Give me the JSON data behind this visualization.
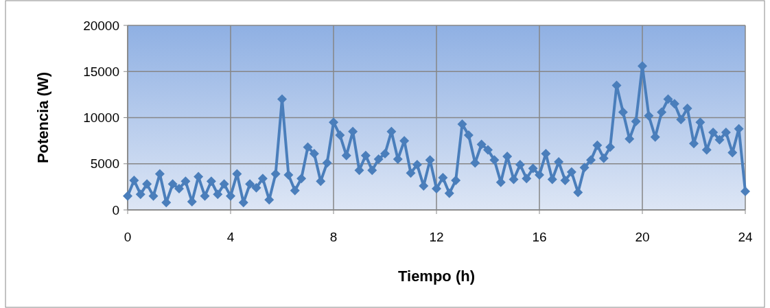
{
  "chart_data": {
    "type": "line",
    "xlabel": "Tiempo (h)",
    "ylabel": "Potencia (W)",
    "x": [
      0,
      0.25,
      0.5,
      0.75,
      1,
      1.25,
      1.5,
      1.75,
      2,
      2.25,
      2.5,
      2.75,
      3,
      3.25,
      3.5,
      3.75,
      4,
      4.25,
      4.5,
      4.75,
      5,
      5.25,
      5.5,
      5.75,
      6,
      6.25,
      6.5,
      6.75,
      7,
      7.25,
      7.5,
      7.75,
      8,
      8.25,
      8.5,
      8.75,
      9,
      9.25,
      9.5,
      9.75,
      10,
      10.25,
      10.5,
      10.75,
      11,
      11.25,
      11.5,
      11.75,
      12,
      12.25,
      12.5,
      12.75,
      13,
      13.25,
      13.5,
      13.75,
      14,
      14.25,
      14.5,
      14.75,
      15,
      15.25,
      15.5,
      15.75,
      16,
      16.25,
      16.5,
      16.75,
      17,
      17.25,
      17.5,
      17.75,
      18,
      18.25,
      18.5,
      18.75,
      19,
      19.25,
      19.5,
      19.75,
      20,
      20.25,
      20.5,
      20.75,
      21,
      21.25,
      21.5,
      21.75,
      22,
      22.25,
      22.5,
      22.75,
      23,
      23.25,
      23.5,
      23.75,
      24
    ],
    "series": [
      {
        "color": "#4a7ebb",
        "values": [
          1500,
          3200,
          1700,
          2800,
          1500,
          3900,
          800,
          2800,
          2300,
          3100,
          900,
          3600,
          1500,
          3100,
          1700,
          2800,
          1500,
          3900,
          800,
          2800,
          2400,
          3400,
          1100,
          3900,
          12000,
          3800,
          2100,
          3400,
          6800,
          6100,
          3100,
          5100,
          9500,
          8100,
          5900,
          8500,
          4300,
          5900,
          4300,
          5500,
          6100,
          8500,
          5500,
          7500,
          4000,
          4900,
          2600,
          5400,
          2300,
          3500,
          1800,
          3200,
          9300,
          8100,
          5100,
          7100,
          6500,
          5400,
          3000,
          5800,
          3300,
          4900,
          3400,
          4500,
          3800,
          6100,
          3300,
          5200,
          3200,
          4100,
          1900,
          4600,
          5400,
          7000,
          5600,
          6800,
          13500,
          10600,
          7700,
          9600,
          15600,
          10200,
          7900,
          10600,
          12000,
          11500,
          9800,
          11000,
          7200,
          9500,
          6500,
          8400,
          7600,
          8400,
          6200,
          8800,
          2000
        ]
      }
    ],
    "xlim": [
      0,
      24
    ],
    "xticks": [
      0,
      4,
      8,
      12,
      16,
      20,
      24
    ],
    "ylim": [
      0,
      20000
    ],
    "yticks": [
      0,
      5000,
      10000,
      15000,
      20000
    ],
    "grid": true,
    "marker": "diamond",
    "line_style": "solid"
  }
}
